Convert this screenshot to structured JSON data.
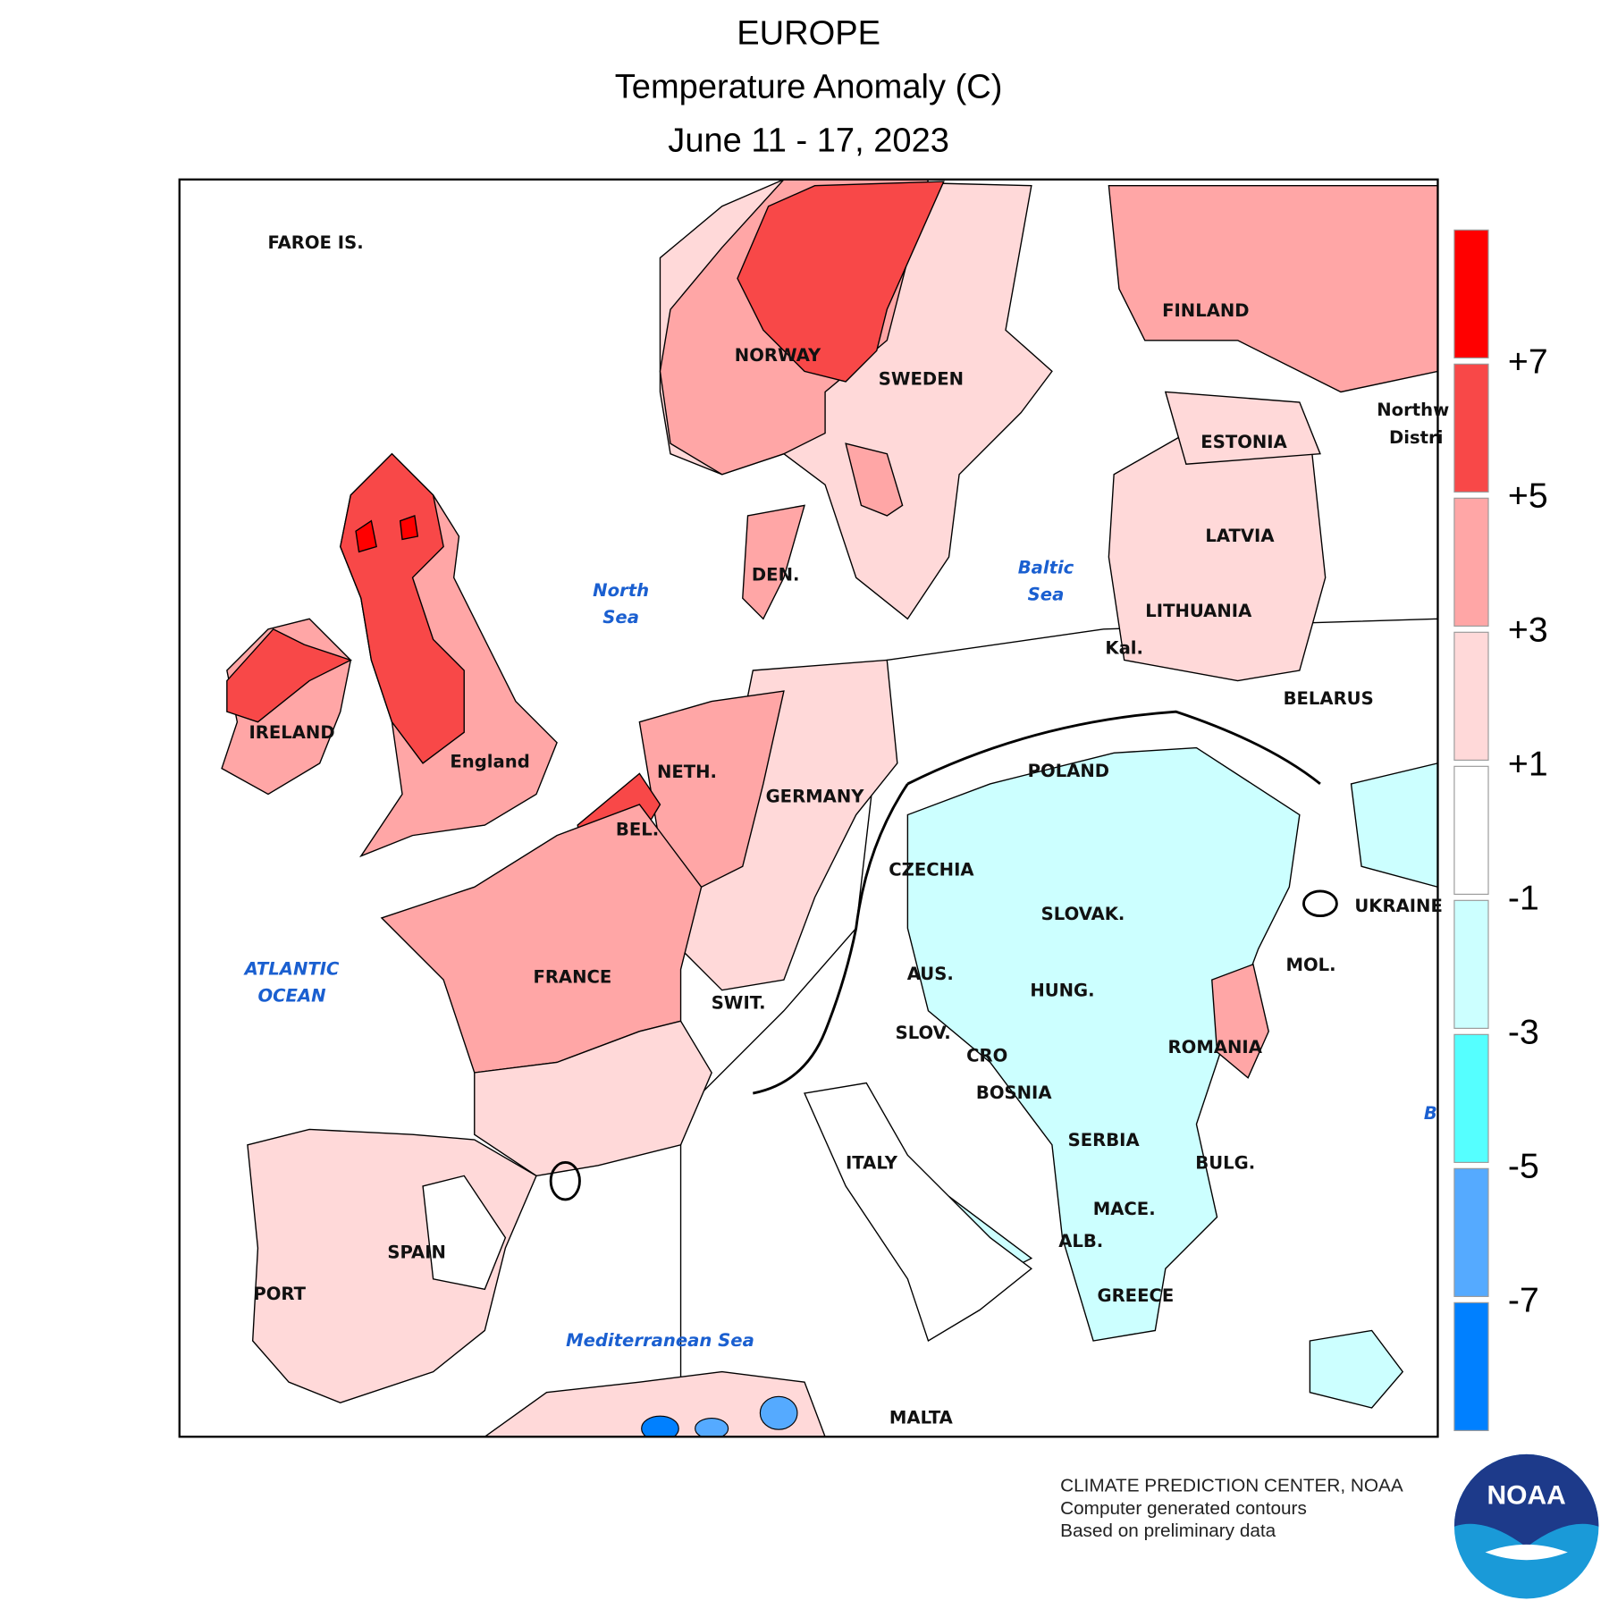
{
  "header": {
    "title": "EUROPE",
    "subtitle": "Temperature Anomaly (C)",
    "date": "June 11 - 17, 2023"
  },
  "map": {
    "countries": [
      "FAROE IS.",
      "NORWAY",
      "SWEDEN",
      "FINLAND",
      "ESTONIA",
      "LATVIA",
      "LITHUANIA",
      "DEN.",
      "IRELAND",
      "England",
      "NETH.",
      "GERMANY",
      "POLAND",
      "BELARUS",
      "Kal.",
      "BEL.",
      "CZECHIA",
      "SLOVAK.",
      "UKRAINE",
      "FRANCE",
      "SWIT.",
      "AUS.",
      "HUNG.",
      "MOL.",
      "SLOV.",
      "CRO",
      "ROMANIA",
      "BOSNIA",
      "SERBIA",
      "BULG.",
      "ITALY",
      "MACE.",
      "ALB.",
      "SPAIN",
      "PORT",
      "GREECE",
      "MALTA",
      "Northw",
      "Distri"
    ],
    "seas": [
      [
        "North",
        "Sea"
      ],
      [
        "Baltic",
        "Sea"
      ],
      [
        "ATLANTIC",
        "OCEAN"
      ],
      [
        "Mediterranean Sea"
      ],
      [
        "B"
      ]
    ]
  },
  "colorbar": {
    "colors": [
      "#ff0000",
      "#f84848",
      "#ffa6a6",
      "#ffd9d9",
      "#ffffff",
      "#ccffff",
      "#55ffff",
      "#55aaff",
      "#0080ff"
    ],
    "ticks": [
      {
        "value": 7,
        "label": "+7"
      },
      {
        "value": 5,
        "label": "+5"
      },
      {
        "value": 3,
        "label": "+3"
      },
      {
        "value": 1,
        "label": "+1"
      },
      -1,
      -3,
      -5,
      -7
    ]
  },
  "footer": {
    "lines": [
      "CLIMATE PREDICTION CENTER, NOAA",
      "Computer generated contours",
      "Based on preliminary data"
    ],
    "logo": "NOAA"
  }
}
